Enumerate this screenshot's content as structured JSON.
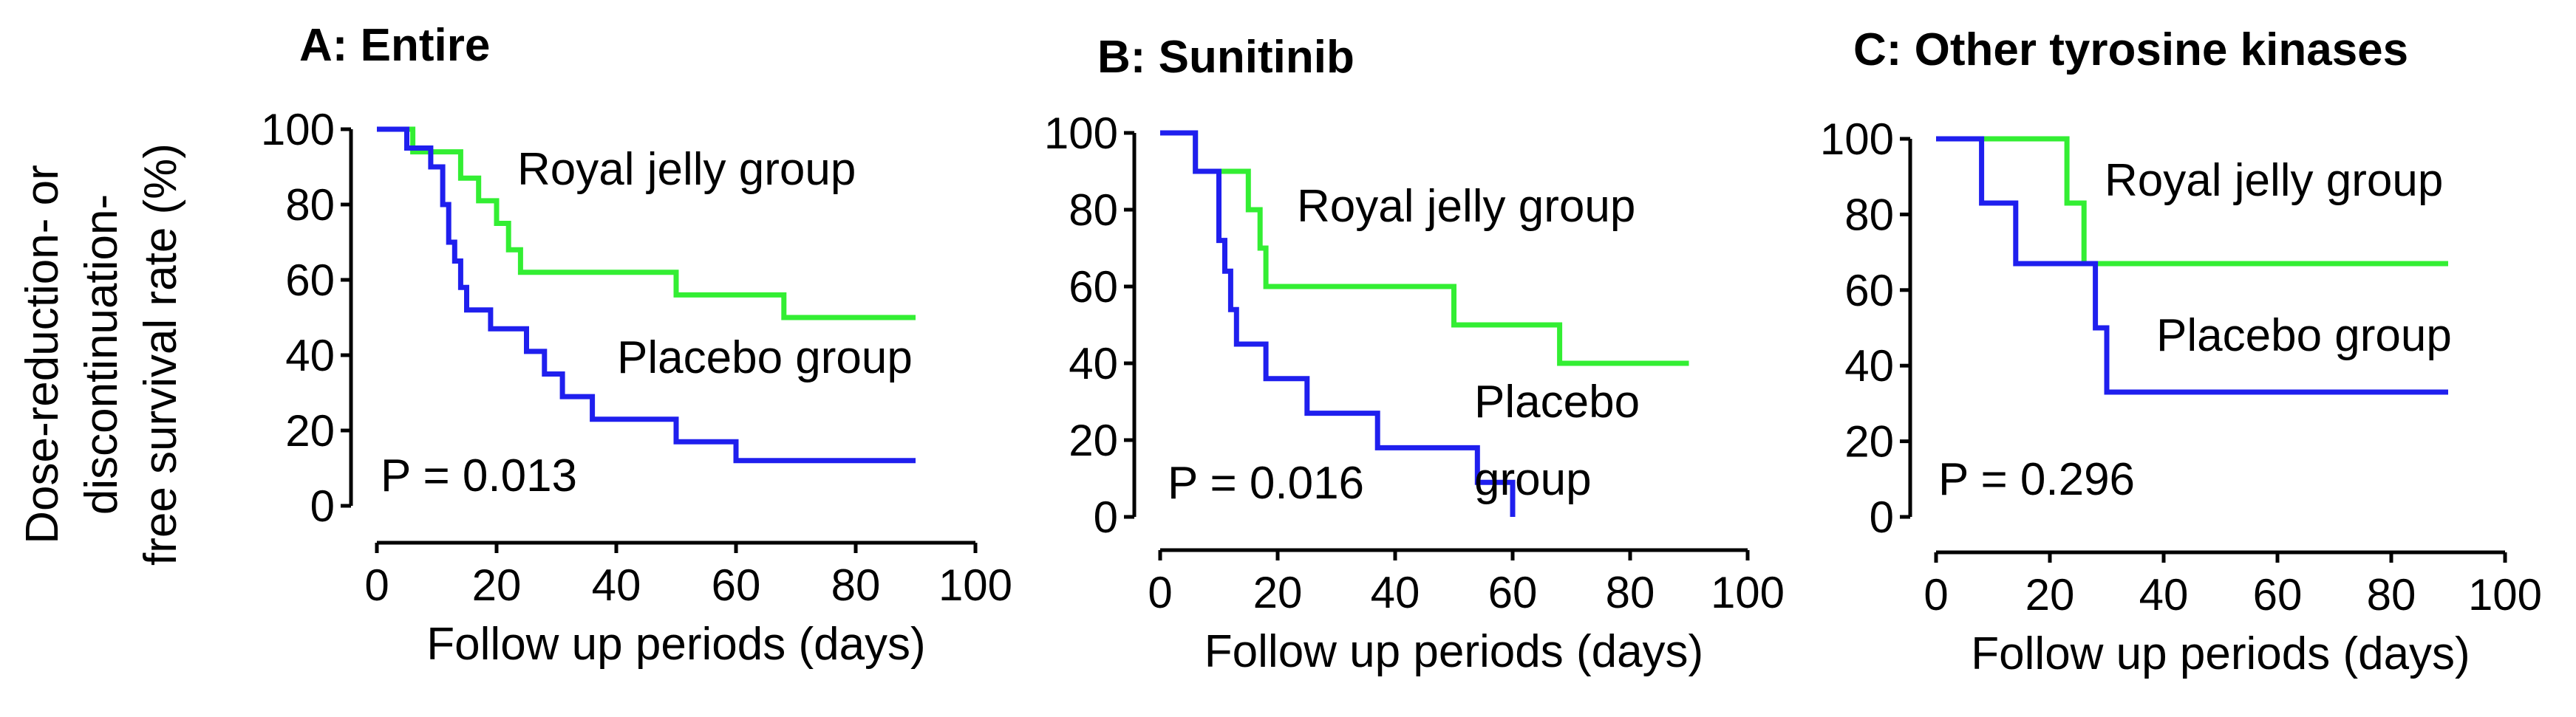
{
  "shared": {
    "ylabel_lines": [
      "Dose-reduction- or",
      "discontinuation-",
      "free survival rate (%)"
    ],
    "xlabel": "Follow up periods (days)",
    "xticks": [
      0,
      20,
      40,
      60,
      80,
      100
    ],
    "yticks": [
      0,
      20,
      40,
      60,
      80,
      100
    ],
    "xlim": [
      0,
      100
    ],
    "ylim": [
      0,
      100
    ]
  },
  "colors": {
    "royal_jelly": "#33ee33",
    "placebo": "#1f1fee",
    "axis": "#000000"
  },
  "chart_data": [
    {
      "type": "line",
      "title": "A: Entire",
      "xlabel": "Follow up periods (days)",
      "ylabel": "Dose-reduction- or discontinuation-free survival rate (%)",
      "p_value": "P = 0.013",
      "series": [
        {
          "name": "Royal jelly group",
          "labels": [
            "Royal jelly group"
          ],
          "step": true,
          "x": [
            0,
            6,
            6,
            14,
            14,
            17,
            17,
            20,
            20,
            22,
            22,
            24,
            24,
            50,
            50,
            68,
            68,
            90
          ],
          "y": [
            100,
            100,
            94,
            94,
            87,
            87,
            81,
            81,
            75,
            75,
            68,
            68,
            62,
            62,
            56,
            56,
            50,
            50
          ]
        },
        {
          "name": "Placebo group",
          "labels": [
            "Placebo group"
          ],
          "step": true,
          "x": [
            0,
            5,
            5,
            9,
            9,
            11,
            11,
            12,
            12,
            13,
            13,
            14,
            14,
            15,
            15,
            19,
            19,
            25,
            25,
            28,
            28,
            31,
            31,
            36,
            36,
            50,
            50,
            60,
            60,
            90
          ],
          "y": [
            100,
            100,
            95,
            95,
            90,
            90,
            80,
            80,
            70,
            70,
            65,
            65,
            58,
            58,
            52,
            52,
            47,
            47,
            41,
            41,
            35,
            35,
            29,
            29,
            23,
            23,
            17,
            17,
            12,
            12
          ]
        }
      ]
    },
    {
      "type": "line",
      "title": "B: Sunitinib",
      "xlabel": "Follow up periods (days)",
      "ylabel": "Dose-reduction- or discontinuation-free survival rate (%)",
      "p_value": "P = 0.016",
      "series": [
        {
          "name": "Royal jelly group",
          "labels": [
            "Royal jelly group"
          ],
          "step": true,
          "x": [
            0,
            6,
            6,
            15,
            15,
            17,
            17,
            18,
            18,
            50,
            50,
            68,
            68,
            90
          ],
          "y": [
            100,
            100,
            90,
            90,
            80,
            80,
            70,
            70,
            60,
            60,
            50,
            50,
            40,
            40
          ]
        },
        {
          "name": "Placebo group",
          "labels": [
            "Placebo",
            "group"
          ],
          "step": true,
          "x": [
            0,
            6,
            6,
            10,
            10,
            11,
            11,
            12,
            12,
            13,
            13,
            18,
            18,
            25,
            25,
            37,
            37,
            54,
            54,
            60,
            60
          ],
          "y": [
            100,
            100,
            90,
            90,
            72,
            72,
            64,
            64,
            54,
            54,
            45,
            45,
            36,
            36,
            27,
            27,
            18,
            18,
            9,
            9,
            0
          ]
        }
      ]
    },
    {
      "type": "line",
      "title": "C: Other tyrosine kinases",
      "xlabel": "Follow up periods (days)",
      "ylabel": "Dose-reduction- or discontinuation-free survival rate (%)",
      "p_value": "P = 0.296",
      "series": [
        {
          "name": "Royal jelly group",
          "labels": [
            "Royal jelly group"
          ],
          "step": true,
          "x": [
            0,
            23,
            23,
            26,
            26,
            90
          ],
          "y": [
            100,
            100,
            83,
            83,
            67,
            67
          ]
        },
        {
          "name": "Placebo group",
          "labels": [
            "Placebo group"
          ],
          "step": true,
          "x": [
            0,
            8,
            8,
            14,
            14,
            28,
            28,
            30,
            30,
            90
          ],
          "y": [
            100,
            100,
            83,
            83,
            67,
            67,
            50,
            50,
            33,
            33
          ]
        }
      ]
    }
  ]
}
